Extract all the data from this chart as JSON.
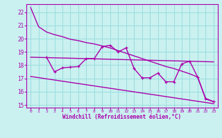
{
  "xlabel": "Windchill (Refroidissement éolien,°C)",
  "bg_color": "#caf0f0",
  "grid_color": "#99dddd",
  "line_color": "#aa00aa",
  "xlim": [
    -0.5,
    23.5
  ],
  "ylim": [
    14.8,
    22.6
  ],
  "xticks": [
    0,
    1,
    2,
    3,
    4,
    5,
    6,
    7,
    8,
    9,
    10,
    11,
    12,
    13,
    14,
    15,
    16,
    17,
    18,
    19,
    20,
    21,
    22,
    23
  ],
  "yticks": [
    15,
    16,
    17,
    18,
    19,
    20,
    21,
    22
  ],
  "line1_x": [
    0,
    1,
    2,
    3,
    4,
    5,
    6,
    7,
    8,
    9,
    10,
    11,
    12,
    13,
    14,
    15,
    16,
    17,
    18,
    19,
    20,
    21,
    22,
    23
  ],
  "line1_y": [
    22.35,
    20.9,
    20.5,
    20.3,
    20.15,
    19.95,
    19.85,
    19.7,
    19.6,
    19.45,
    19.3,
    19.1,
    18.9,
    18.7,
    18.5,
    18.3,
    18.1,
    17.9,
    17.75,
    17.55,
    17.35,
    17.1,
    15.45,
    15.25
  ],
  "line2_x": [
    2,
    3,
    4,
    5,
    6,
    7,
    8,
    9,
    10,
    11,
    12,
    13,
    14,
    15,
    16,
    17,
    18,
    19,
    20,
    21,
    22,
    23
  ],
  "line2_y": [
    18.6,
    17.5,
    17.8,
    17.85,
    17.9,
    18.5,
    18.5,
    19.4,
    19.5,
    19.0,
    19.3,
    17.75,
    17.05,
    17.05,
    17.4,
    16.75,
    16.75,
    18.1,
    18.3,
    17.1,
    15.5,
    15.25
  ],
  "line3_x": [
    0,
    23
  ],
  "line3_y": [
    18.6,
    18.25
  ],
  "line4_x": [
    0,
    23
  ],
  "line4_y": [
    17.15,
    15.1
  ]
}
